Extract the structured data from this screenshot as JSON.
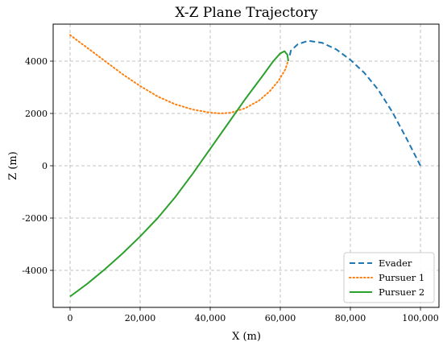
{
  "chart_data": {
    "type": "line",
    "title": "X-Z Plane Trajectory",
    "xlabel": "X (m)",
    "ylabel": "Z (m)",
    "xlim": [
      -5000,
      105000
    ],
    "ylim": [
      -5400,
      5400
    ],
    "xticks": [
      0,
      20000,
      40000,
      60000,
      80000,
      100000
    ],
    "xtick_labels": [
      "0",
      "20,000",
      "40,000",
      "60,000",
      "80,000",
      "100,000"
    ],
    "yticks": [
      -4000,
      -2000,
      0,
      2000,
      4000
    ],
    "ytick_labels": [
      "-4000",
      "-2000",
      "0",
      "2000",
      "4000"
    ],
    "grid": true,
    "legend_position": "bottom-right",
    "series": [
      {
        "name": "Evader",
        "color": "#1f77b4",
        "style": "dashed",
        "points": [
          [
            100000,
            0
          ],
          [
            96000,
            1050
          ],
          [
            92000,
            2050
          ],
          [
            88000,
            2900
          ],
          [
            84000,
            3550
          ],
          [
            80000,
            4050
          ],
          [
            76000,
            4450
          ],
          [
            72000,
            4700
          ],
          [
            68000,
            4780
          ],
          [
            65000,
            4650
          ],
          [
            63000,
            4400
          ],
          [
            62500,
            4100
          ]
        ]
      },
      {
        "name": "Pursuer 1",
        "color": "#ff7f0e",
        "style": "dotted",
        "points": [
          [
            0,
            5000
          ],
          [
            5000,
            4500
          ],
          [
            10000,
            4000
          ],
          [
            15000,
            3500
          ],
          [
            20000,
            3050
          ],
          [
            25000,
            2650
          ],
          [
            30000,
            2350
          ],
          [
            35000,
            2150
          ],
          [
            40000,
            2030
          ],
          [
            43000,
            2000
          ],
          [
            46000,
            2030
          ],
          [
            50000,
            2200
          ],
          [
            54000,
            2500
          ],
          [
            57000,
            2850
          ],
          [
            59500,
            3250
          ],
          [
            61500,
            3700
          ],
          [
            62300,
            4050
          ]
        ]
      },
      {
        "name": "Pursuer 2",
        "color": "#2ca02c",
        "style": "solid",
        "points": [
          [
            0,
            -5000
          ],
          [
            5000,
            -4500
          ],
          [
            10000,
            -3950
          ],
          [
            15000,
            -3350
          ],
          [
            20000,
            -2700
          ],
          [
            25000,
            -2000
          ],
          [
            30000,
            -1200
          ],
          [
            35000,
            -300
          ],
          [
            40000,
            650
          ],
          [
            45000,
            1600
          ],
          [
            50000,
            2550
          ],
          [
            55000,
            3450
          ],
          [
            58000,
            4000
          ],
          [
            60000,
            4300
          ],
          [
            61200,
            4380
          ],
          [
            62000,
            4250
          ],
          [
            62300,
            4000
          ]
        ]
      }
    ]
  }
}
